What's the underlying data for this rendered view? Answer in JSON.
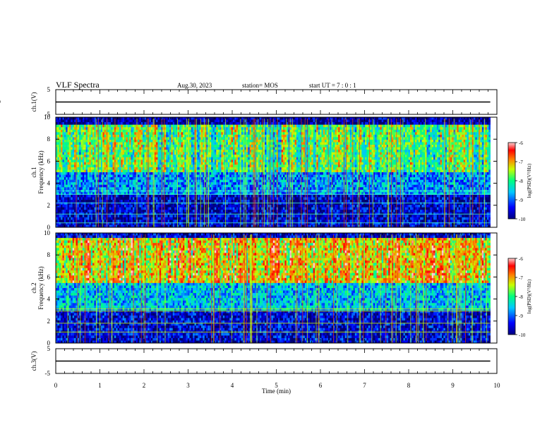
{
  "header": {
    "title": "VLF Spectra",
    "date": "Aug.30, 2023",
    "station": "station= MOS",
    "start": "start  UT =  7 : 0  : 1"
  },
  "chart_data": [
    {
      "type": "line",
      "panel": "ch1-waveform",
      "ylabel": "ch.1(V)",
      "ylim": [
        -5,
        5
      ],
      "yticks": [
        "5",
        "-5"
      ],
      "xlim": [
        0,
        10
      ],
      "series": [
        {
          "x": [
            0,
            9.85
          ],
          "values": [
            0,
            0
          ]
        }
      ]
    },
    {
      "type": "heatmap",
      "panel": "ch1-spectrogram",
      "ylabel": "ch.1 Frequency (kHz)",
      "ylim": [
        0,
        10
      ],
      "yticks": [
        "0",
        "2",
        "4",
        "6",
        "8",
        "10"
      ],
      "xlim": [
        0,
        10
      ],
      "data_extent_min": 9.85,
      "colorbar": {
        "label": "log(PSD)(V²/Hz)",
        "range": [
          -10,
          -6
        ],
        "ticks": [
          "-6",
          "-7",
          "-8",
          "-9",
          "-10"
        ]
      }
    },
    {
      "type": "heatmap",
      "panel": "ch2-spectrogram",
      "ylabel": "ch.2 Frequency (kHz)",
      "ylim": [
        0,
        10
      ],
      "yticks": [
        "0",
        "2",
        "4",
        "6",
        "8",
        "10"
      ],
      "xlim": [
        0,
        10
      ],
      "data_extent_min": 9.85,
      "colorbar": {
        "label": "log(PSD)(V²/Hz)",
        "range": [
          -10,
          -6
        ],
        "ticks": [
          "-6",
          "-7",
          "-8",
          "-9",
          "-10"
        ]
      }
    },
    {
      "type": "line",
      "panel": "ch3-waveform",
      "ylabel": "ch.3(V)",
      "ylim": [
        -5,
        5
      ],
      "yticks": [
        "5",
        "-5"
      ],
      "xlim": [
        0,
        10
      ],
      "series": [
        {
          "x": [
            0,
            9.85
          ],
          "values": [
            0,
            0
          ]
        }
      ]
    }
  ],
  "xaxis": {
    "label": "Time  (min)",
    "ticks": [
      "0",
      "1",
      "2",
      "3",
      "4",
      "5",
      "6",
      "7",
      "8",
      "9",
      "10"
    ]
  }
}
